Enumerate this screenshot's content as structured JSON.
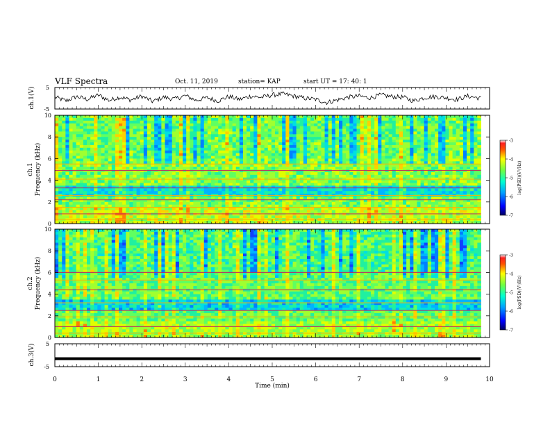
{
  "header": {
    "title": "VLF Spectra",
    "date": "Oct. 11, 2019",
    "station": "station= KAP",
    "start": "start  UT =   17: 40: 1"
  },
  "chart_data": [
    {
      "type": "line",
      "panel": "ch1-waveform",
      "ylabel": "ch.1(V)",
      "ylim": [
        -5,
        5
      ],
      "yticks": [
        "5",
        "-5"
      ],
      "xlim": [
        0,
        10
      ],
      "x": [
        0.0,
        0.25,
        0.5,
        0.75,
        1.0,
        1.25,
        1.5,
        1.75,
        2.0,
        2.25,
        2.5,
        2.75,
        3.0,
        3.25,
        3.5,
        3.75,
        4.0,
        4.25,
        4.5,
        4.75,
        5.0,
        5.25,
        5.5,
        5.75,
        6.0,
        6.25,
        6.5,
        6.75,
        7.0,
        7.25,
        7.5,
        7.75,
        8.0,
        8.25,
        8.5,
        8.75,
        9.0,
        9.25,
        9.5,
        9.8
      ],
      "y": [
        0.5,
        -1.2,
        0.8,
        -0.5,
        1.5,
        -1.0,
        0.6,
        -0.8,
        1.0,
        -1.5,
        0.5,
        -0.4,
        1.2,
        -1.0,
        0.3,
        -1.2,
        0.8,
        -0.6,
        1.0,
        0.4,
        1.5,
        2.0,
        1.0,
        0.0,
        -0.5,
        -2.0,
        -0.8,
        0.5,
        1.0,
        0.2,
        1.5,
        0.8,
        0.5,
        -1.2,
        0.3,
        0.8,
        0.2,
        -0.6,
        1.0,
        0.0
      ]
    },
    {
      "type": "heatmap",
      "panel": "ch1-spectrogram",
      "title": "ch.1",
      "ylabel": "Frequency  (kHz)",
      "ylim": [
        0,
        10
      ],
      "yticks": [
        "0",
        "2",
        "4",
        "6",
        "8",
        "10"
      ],
      "xlim": [
        0,
        10
      ],
      "data_end_min": 9.8,
      "colorbar": {
        "label": "log(PSD)(V²/Hz)",
        "range": [
          -7,
          -3
        ],
        "ticks": [
          "-3",
          "-4",
          "-5",
          "-6",
          "-7"
        ]
      },
      "bands_khz": [
        0.4,
        0.9,
        1.5,
        2.2,
        2.6,
        3.3,
        4.1,
        4.9,
        5.5
      ]
    },
    {
      "type": "heatmap",
      "panel": "ch2-spectrogram",
      "title": "ch.2",
      "ylabel": "Frequency  (kHz)",
      "ylim": [
        0,
        10
      ],
      "yticks": [
        "0",
        "2",
        "4",
        "6",
        "8",
        "10"
      ],
      "xlim": [
        0,
        10
      ],
      "data_end_min": 9.8,
      "colorbar": {
        "label": "log(PSD)(V²/Hz)",
        "range": [
          -7,
          -3
        ],
        "ticks": [
          "-3",
          "-4",
          "-5",
          "-6",
          "-7"
        ]
      },
      "bands_khz": [
        0.4,
        1.0,
        1.9,
        2.5,
        3.2,
        4.4,
        5.3,
        6.0
      ]
    },
    {
      "type": "line",
      "panel": "ch3-waveform",
      "ylabel": "ch.3(V)",
      "ylim": [
        -5,
        5
      ],
      "yticks": [
        "5",
        "-5"
      ],
      "xlim": [
        0,
        10
      ],
      "x": [
        0,
        9.8
      ],
      "y": [
        -1.5,
        -1.5
      ]
    }
  ],
  "xaxis": {
    "label": "Time  (min)",
    "ticks": [
      "0",
      "1",
      "2",
      "3",
      "4",
      "5",
      "6",
      "7",
      "8",
      "9",
      "10"
    ]
  }
}
